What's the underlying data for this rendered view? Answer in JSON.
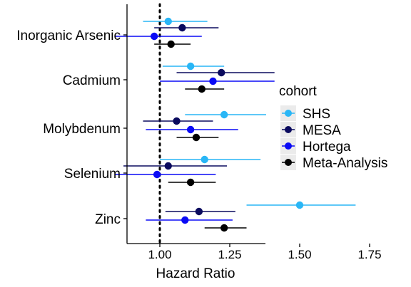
{
  "chart_data": {
    "type": "forest",
    "xlabel": "Hazard Ratio",
    "xlim": [
      0.82,
      1.77
    ],
    "xticks": [
      1.0,
      1.25,
      1.5,
      1.75
    ],
    "xtick_labels": [
      "1.00",
      "1.25",
      "1.50",
      "1.75"
    ],
    "reference_line": 1.0,
    "categories": [
      "Inorganic Arsenic",
      "Cadmium",
      "Molybdenum",
      "Selenium",
      "Zinc"
    ],
    "legend": {
      "title": "cohort",
      "placement": "right"
    },
    "series": [
      {
        "name": "SHS",
        "color": "#29B6F6",
        "estimates": [
          1.03,
          1.11,
          1.23,
          1.16,
          1.5
        ],
        "lower": [
          0.94,
          1.01,
          1.09,
          1.0,
          1.31
        ],
        "upper": [
          1.17,
          1.23,
          1.38,
          1.36,
          1.7
        ]
      },
      {
        "name": "MESA",
        "color": "#0A0A5E",
        "estimates": [
          1.08,
          1.22,
          1.06,
          1.03,
          1.14
        ],
        "lower": [
          0.98,
          1.06,
          0.94,
          0.87,
          1.02
        ],
        "upper": [
          1.21,
          1.41,
          1.19,
          1.24,
          1.27
        ]
      },
      {
        "name": "Hortega",
        "color": "#0A0AF5",
        "estimates": [
          0.98,
          1.19,
          1.11,
          0.99,
          1.09
        ],
        "lower": [
          0.84,
          1.0,
          0.95,
          0.84,
          0.95
        ],
        "upper": [
          1.15,
          1.41,
          1.28,
          1.2,
          1.26
        ]
      },
      {
        "name": "Meta-Analysis",
        "color": "#000000",
        "estimates": [
          1.04,
          1.15,
          1.13,
          1.11,
          1.23
        ],
        "lower": [
          0.98,
          1.09,
          1.06,
          1.03,
          1.16
        ],
        "upper": [
          1.11,
          1.23,
          1.21,
          1.2,
          1.31
        ]
      }
    ]
  }
}
